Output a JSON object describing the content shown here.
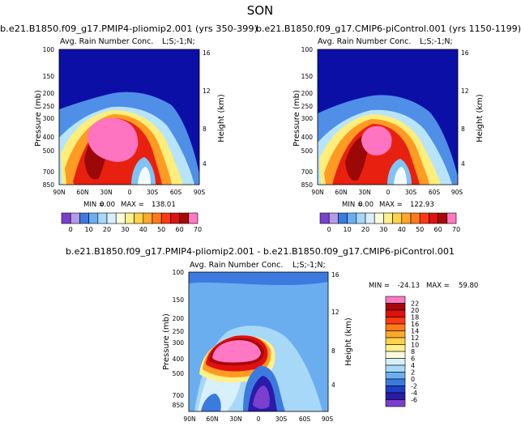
{
  "page": {
    "title": "SON"
  },
  "chart_data": [
    {
      "type": "heatmap",
      "title": "b.e21.B1850.f09_g17.PMIP4-pliomip2.001 (yrs 350-399)",
      "subtitle_left": "Avg. Rain Number Conc.",
      "subtitle_right": "L;S;-1;N;",
      "ylabel": "Pressure (mb)",
      "ylabel_right": "Height (km)",
      "x_ticks": [
        "90N",
        "60N",
        "30N",
        "0",
        "30S",
        "60S",
        "90S"
      ],
      "y_ticks": [
        "100",
        "150",
        "200",
        "250",
        "300",
        "400",
        "500",
        "700",
        "850"
      ],
      "y_ticks_right": [
        "16",
        "12",
        "8",
        "4"
      ],
      "min_label": "MIN =",
      "min": "0.00",
      "max_label": "MAX =",
      "max": "138.01",
      "legend": {
        "orientation": "horizontal",
        "labels": [
          "0",
          "10",
          "20",
          "30",
          "40",
          "50",
          "60",
          "70"
        ],
        "colors": [
          "#7b3fd0",
          "#b59ae8",
          "#3b7be0",
          "#6aaef0",
          "#a8d8f8",
          "#d8f0fc",
          "#fffde0",
          "#fff28c",
          "#ffd24a",
          "#ffa82a",
          "#ff7a1a",
          "#ff3a12",
          "#e01010",
          "#a80808",
          "#ff78c4"
        ]
      }
    },
    {
      "type": "heatmap",
      "title": "b.e21.B1850.f09_g17.CMIP6-piControl.001 (yrs 1150-1199)",
      "subtitle_left": "Avg. Rain Number Conc.",
      "subtitle_right": "L;S;-1;N;",
      "ylabel": "Pressure (mb)",
      "ylabel_right": "Height (km)",
      "x_ticks": [
        "90N",
        "60N",
        "30N",
        "0",
        "30S",
        "60S",
        "90S"
      ],
      "y_ticks": [
        "100",
        "150",
        "200",
        "250",
        "300",
        "400",
        "500",
        "700",
        "850"
      ],
      "y_ticks_right": [
        "16",
        "12",
        "8",
        "4"
      ],
      "min_label": "MIN =",
      "min": "0.00",
      "max_label": "MAX =",
      "max": "122.93",
      "legend": {
        "orientation": "horizontal",
        "labels": [
          "0",
          "10",
          "20",
          "30",
          "40",
          "50",
          "60",
          "70"
        ],
        "colors": [
          "#7b3fd0",
          "#b59ae8",
          "#3b7be0",
          "#6aaef0",
          "#a8d8f8",
          "#d8f0fc",
          "#fffde0",
          "#fff28c",
          "#ffd24a",
          "#ffa82a",
          "#ff7a1a",
          "#ff3a12",
          "#e01010",
          "#a80808",
          "#ff78c4"
        ]
      }
    },
    {
      "type": "heatmap",
      "title": "b.e21.B1850.f09_g17.PMIP4-pliomip2.001 - b.e21.B1850.f09_g17.CMIP6-piControl.001",
      "subtitle_left": "Avg. Rain Number Conc.",
      "subtitle_right": "L;S;-1;N;",
      "ylabel": "Pressure (mb)",
      "ylabel_right": "Height (km)",
      "x_ticks": [
        "90N",
        "60N",
        "30N",
        "0",
        "30S",
        "60S",
        "90S"
      ],
      "y_ticks": [
        "100",
        "150",
        "200",
        "250",
        "300",
        "400",
        "500",
        "700",
        "850"
      ],
      "y_ticks_right": [
        "16",
        "12",
        "8",
        "4"
      ],
      "min_label": "MIN =",
      "min": "-24.13",
      "max_label": "MAX =",
      "max": "59.80",
      "legend": {
        "orientation": "vertical",
        "labels": [
          "22",
          "20",
          "18",
          "16",
          "14",
          "12",
          "10",
          "8",
          "6",
          "4",
          "2",
          "0",
          "-2",
          "-4",
          "-6"
        ],
        "colors": [
          "#ff78c4",
          "#a80808",
          "#e01010",
          "#ff3a12",
          "#ff7a1a",
          "#ffa82a",
          "#ffd24a",
          "#fff28c",
          "#fffde0",
          "#d8f0fc",
          "#a8d8f8",
          "#6aaef0",
          "#3b7be0",
          "#1f3fc8",
          "#2a1ca8",
          "#7b3fd0"
        ]
      }
    }
  ]
}
